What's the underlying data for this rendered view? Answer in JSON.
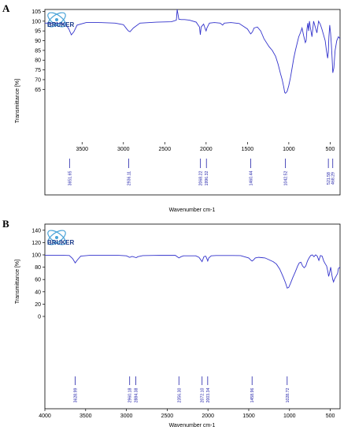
{
  "panels": [
    {
      "letter": "A"
    },
    {
      "letter": "B"
    }
  ],
  "logo": {
    "text": "BRUKER"
  },
  "colors": {
    "spectrum": "#3333cc",
    "axis": "#000000",
    "peak_label": "#2222aa"
  },
  "chart_data": [
    {
      "type": "line",
      "xlabel": "Wavenumber cm-1",
      "ylabel": "Transmittance [%]",
      "xlim": [
        3950,
        380
      ],
      "ylim": [
        38,
        106
      ],
      "x_ticks": [
        3500,
        3000,
        2500,
        2000,
        1500,
        1000,
        500
      ],
      "y_ticks": [
        65,
        70,
        75,
        80,
        85,
        90,
        95,
        100,
        105
      ],
      "series": [
        {
          "x": [
            3950,
            3800,
            3700,
            3660,
            3630,
            3600,
            3560,
            3450,
            3300,
            3100,
            3000,
            2960,
            2940,
            2920,
            2880,
            2800,
            2600,
            2420,
            2360,
            2350,
            2330,
            2300,
            2260,
            2200,
            2120,
            2080,
            2070,
            2060,
            2030,
            2010,
            2000,
            1990,
            1960,
            1900,
            1830,
            1800,
            1780,
            1700,
            1600,
            1500,
            1470,
            1460,
            1440,
            1420,
            1380,
            1340,
            1320,
            1300,
            1240,
            1200,
            1160,
            1130,
            1100,
            1080,
            1060,
            1050,
            1040,
            1020,
            1000,
            980,
            960,
            940,
            920,
            880,
            860,
            840,
            820,
            800,
            790,
            780,
            770,
            760,
            750,
            740,
            720,
            700,
            680,
            660,
            640,
            620,
            600,
            580,
            560,
            545,
            530,
            522,
            515,
            505,
            495,
            485,
            475,
            468,
            455,
            440,
            420,
            400,
            380
          ],
          "y": [
            99,
            99,
            98.5,
            96,
            93,
            94.5,
            98,
            99.3,
            99.3,
            99,
            98.2,
            96,
            95,
            94.6,
            96.5,
            99,
            99.5,
            99.7,
            100.5,
            106,
            101,
            100.8,
            100.8,
            100.5,
            99.5,
            97,
            93,
            97,
            98.5,
            96,
            95,
            96.5,
            99,
            99.3,
            99,
            98,
            99,
            99.3,
            98.8,
            96,
            94,
            93.5,
            94.5,
            96.5,
            97,
            95,
            93,
            91,
            87,
            85,
            82,
            78,
            73,
            70,
            66,
            63.5,
            63,
            64,
            67,
            71,
            76,
            81,
            85,
            92,
            94,
            96.5,
            92.5,
            89,
            90,
            96,
            99,
            95,
            100,
            97,
            92,
            100,
            97,
            94,
            100,
            98.5,
            96,
            93,
            90,
            85,
            81,
            84,
            92,
            98,
            94,
            88,
            80,
            73.5,
            76,
            85,
            90,
            92,
            91
          ]
        }
      ],
      "peak_labels": [
        {
          "x": 3651.65,
          "text": "3651.65"
        },
        {
          "x": 2936.11,
          "text": "2936.11"
        },
        {
          "x": 2068.22,
          "text": "2068.22"
        },
        {
          "x": 1996.32,
          "text": "1996.32"
        },
        {
          "x": 1460.44,
          "text": "1460.44"
        },
        {
          "x": 1042.52,
          "text": "1042.52"
        },
        {
          "x": 521.58,
          "text": "521.58"
        },
        {
          "x": 468.29,
          "text": "468.29"
        }
      ]
    },
    {
      "type": "line",
      "xlabel": "Wavenumber cm-1",
      "ylabel": "Transmittance [%]",
      "xlim": [
        4000,
        380
      ],
      "ylim": [
        -150,
        150
      ],
      "x_ticks": [
        4000,
        3500,
        3000,
        2500,
        2000,
        1500,
        1000,
        500
      ],
      "y_ticks": [
        0,
        20,
        40,
        60,
        80,
        100,
        120,
        140
      ],
      "series": [
        {
          "x": [
            4000,
            3800,
            3700,
            3660,
            3628,
            3600,
            3560,
            3450,
            3100,
            3000,
            2960,
            2930,
            2880,
            2860,
            2800,
            2600,
            2400,
            2356,
            2330,
            2300,
            2150,
            2110,
            2072,
            2050,
            2030,
            2020,
            2003,
            1990,
            1960,
            1900,
            1800,
            1700,
            1600,
            1500,
            1470,
            1459,
            1440,
            1420,
            1380,
            1340,
            1300,
            1250,
            1200,
            1160,
            1120,
            1080,
            1050,
            1028,
            1010,
            990,
            960,
            930,
            900,
            880,
            860,
            840,
            820,
            800,
            780,
            760,
            740,
            720,
            700,
            680,
            660,
            640,
            620,
            600,
            580,
            560,
            545,
            530,
            520,
            510,
            495,
            480,
            470,
            460,
            450,
            430,
            410,
            400,
            380
          ],
          "y": [
            99.5,
            99.5,
            99,
            94,
            87,
            92,
            98,
            99.3,
            99.3,
            98.5,
            96,
            97.5,
            95.5,
            97,
            98.8,
            99.3,
            99.2,
            95,
            97,
            98.5,
            98.5,
            96,
            89,
            97,
            98,
            96,
            90,
            95,
            98.5,
            99,
            99,
            99,
            98.8,
            95,
            91,
            90,
            92,
            95,
            96,
            95.5,
            95,
            92,
            89,
            85,
            77,
            65,
            55,
            46,
            47,
            53,
            63,
            72,
            82,
            87,
            88,
            82,
            79,
            82,
            90,
            95,
            99,
            100,
            97,
            100,
            98,
            91,
            99,
            98,
            90,
            85,
            82,
            73,
            65,
            70,
            80,
            67,
            60,
            56,
            60,
            65,
            70,
            78,
            80
          ]
        }
      ],
      "peak_labels": [
        {
          "x": 3628.99,
          "text": "3628.99"
        },
        {
          "x": 2960.18,
          "text": "2960.18"
        },
        {
          "x": 2884.38,
          "text": "2884.38"
        },
        {
          "x": 2356.3,
          "text": "2356.30"
        },
        {
          "x": 2072.1,
          "text": "2072.10"
        },
        {
          "x": 2003.34,
          "text": "2003.34"
        },
        {
          "x": 1458.96,
          "text": "1458.96"
        },
        {
          "x": 1028.72,
          "text": "1028.72"
        }
      ]
    }
  ]
}
